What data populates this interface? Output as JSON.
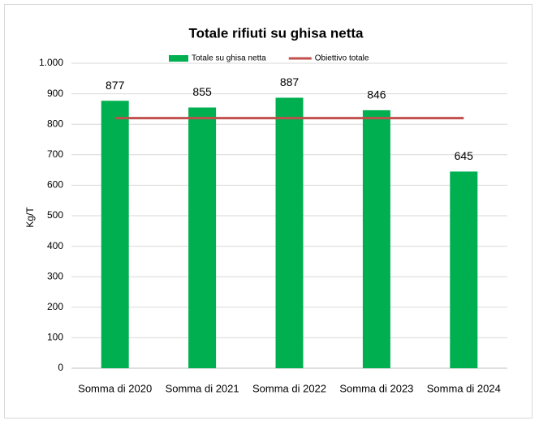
{
  "chart_data": {
    "type": "bar",
    "title": "Totale rifiuti su ghisa netta",
    "ylabel": "Kg/T",
    "categories": [
      "Somma di 2020",
      "Somma di 2021",
      "Somma di 2022",
      "Somma di 2023",
      "Somma di 2024"
    ],
    "series": [
      {
        "name": "Totale su ghisa netta",
        "type": "bar",
        "color": "#00b050",
        "values": [
          877,
          855,
          887,
          846,
          645
        ]
      },
      {
        "name": "Obiettivo totale",
        "type": "line",
        "color": "#c0504d",
        "values": [
          820,
          820,
          820,
          820,
          820
        ]
      }
    ],
    "ylim": [
      0,
      1000
    ],
    "yticks": [
      0,
      100,
      200,
      300,
      400,
      500,
      600,
      700,
      800,
      900,
      {
        "value": 1000,
        "label": "1.000"
      }
    ],
    "grid": true,
    "legend": "top",
    "data_labels": true
  }
}
